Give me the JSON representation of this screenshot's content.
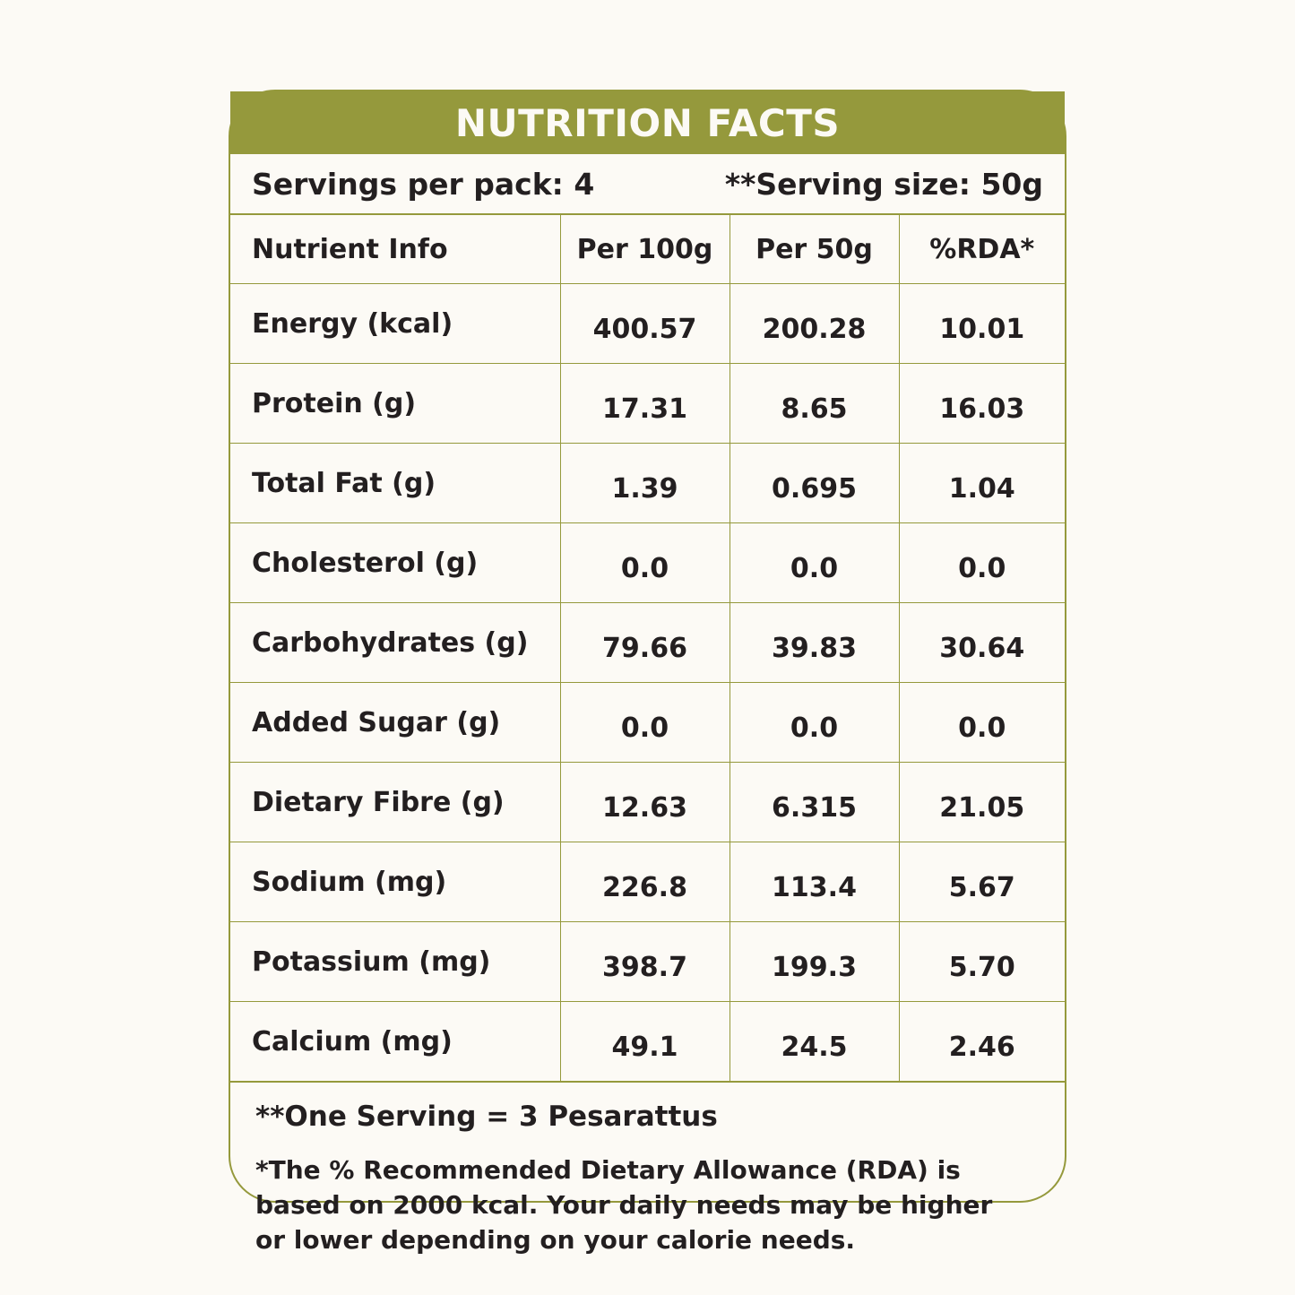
{
  "header": {
    "title": "NUTRITION FACTS"
  },
  "servings": {
    "per_pack": "Servings per pack: 4",
    "size": "**Serving size: 50g"
  },
  "table": {
    "columns": [
      "Nutrient Info",
      "Per 100g",
      "Per 50g",
      "%RDA*"
    ],
    "rows": [
      {
        "name": "Energy (kcal)",
        "per100": "400.57",
        "per50": "200.28",
        "rda": "10.01"
      },
      {
        "name": "Protein (g)",
        "per100": "17.31",
        "per50": "8.65",
        "rda": "16.03"
      },
      {
        "name": "Total Fat (g)",
        "per100": "1.39",
        "per50": "0.695",
        "rda": "1.04"
      },
      {
        "name": "Cholesterol (g)",
        "per100": "0.0",
        "per50": "0.0",
        "rda": "0.0"
      },
      {
        "name": "Carbohydrates (g)",
        "per100": "79.66",
        "per50": "39.83",
        "rda": "30.64"
      },
      {
        "name": "Added Sugar (g)",
        "per100": "0.0",
        "per50": "0.0",
        "rda": "0.0"
      },
      {
        "name": "Dietary Fibre (g)",
        "per100": "12.63",
        "per50": "6.315",
        "rda": "21.05"
      },
      {
        "name": "Sodium (mg)",
        "per100": "226.8",
        "per50": "113.4",
        "rda": "5.67"
      },
      {
        "name": "Potassium (mg)",
        "per100": "398.7",
        "per50": "199.3",
        "rda": "5.70"
      },
      {
        "name": "Calcium (mg)",
        "per100": "49.1",
        "per50": "24.5",
        "rda": "2.46"
      }
    ]
  },
  "footer": {
    "serving_note": "**One Serving = 3 Pesarattus",
    "rda_note": "*The % Recommended Dietary Allowance (RDA) is based on 2000 kcal. Your daily needs may be higher or lower depending on your calorie needs."
  },
  "colors": {
    "accent": "#95993c",
    "background": "#fcfaf5",
    "text": "#231f20"
  }
}
